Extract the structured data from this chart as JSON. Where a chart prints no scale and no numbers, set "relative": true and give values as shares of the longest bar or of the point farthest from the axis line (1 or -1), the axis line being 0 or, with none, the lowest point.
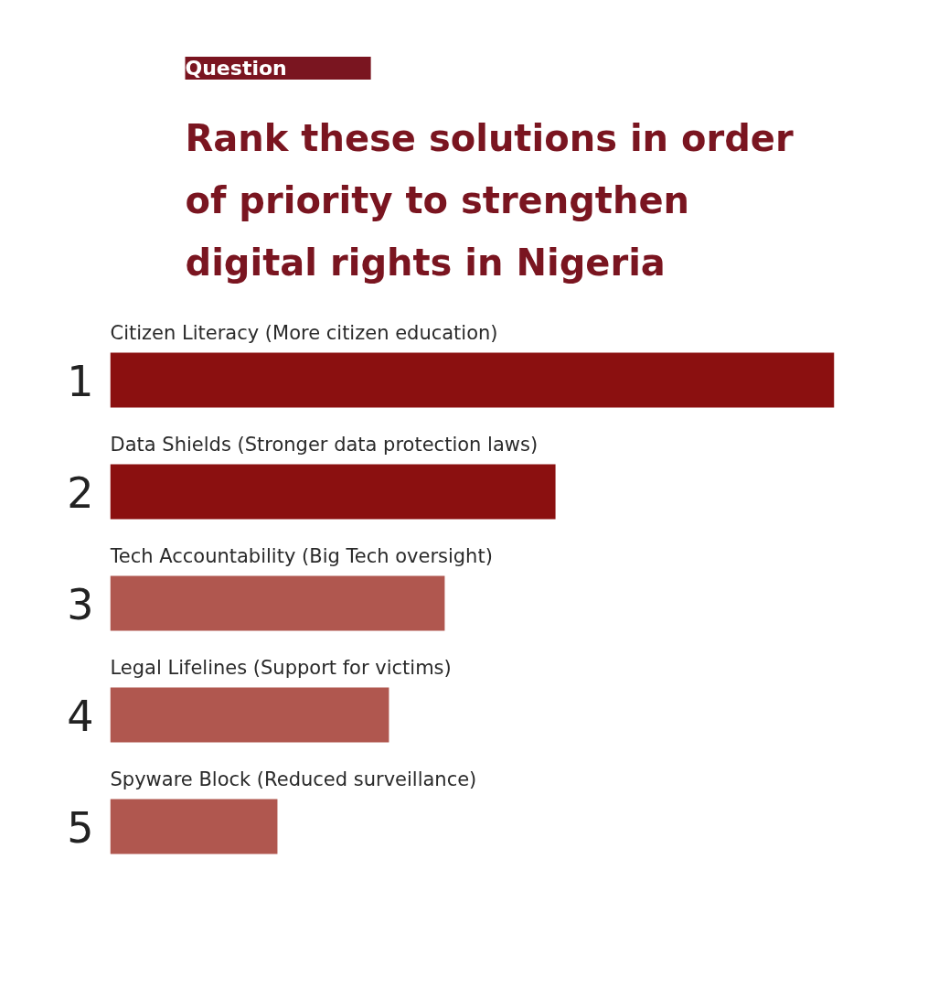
{
  "chart_data": {
    "type": "bar",
    "orientation": "horizontal",
    "relative": true,
    "title": "Rank these solutions in order of priority to strengthen digital rights in Nigeria",
    "categories": [
      "Citizen Literacy (More citizen education)",
      "Data Shields (Stronger data protection laws)",
      "Tech Accountability (Big Tech oversight)",
      "Legal Lifelines (Support for victims)",
      "Spyware Block (Reduced surveillance)"
    ],
    "values": [
      1,
      0.615,
      0.462,
      0.385,
      0.231
    ],
    "colors": [
      "#8b1010",
      "#8b1010",
      "#b0574f",
      "#b0574f",
      "#b0574f"
    ],
    "annotations": [
      "Question",
      "1",
      "2",
      "3",
      "4",
      "5"
    ],
    "grid": false
  }
}
